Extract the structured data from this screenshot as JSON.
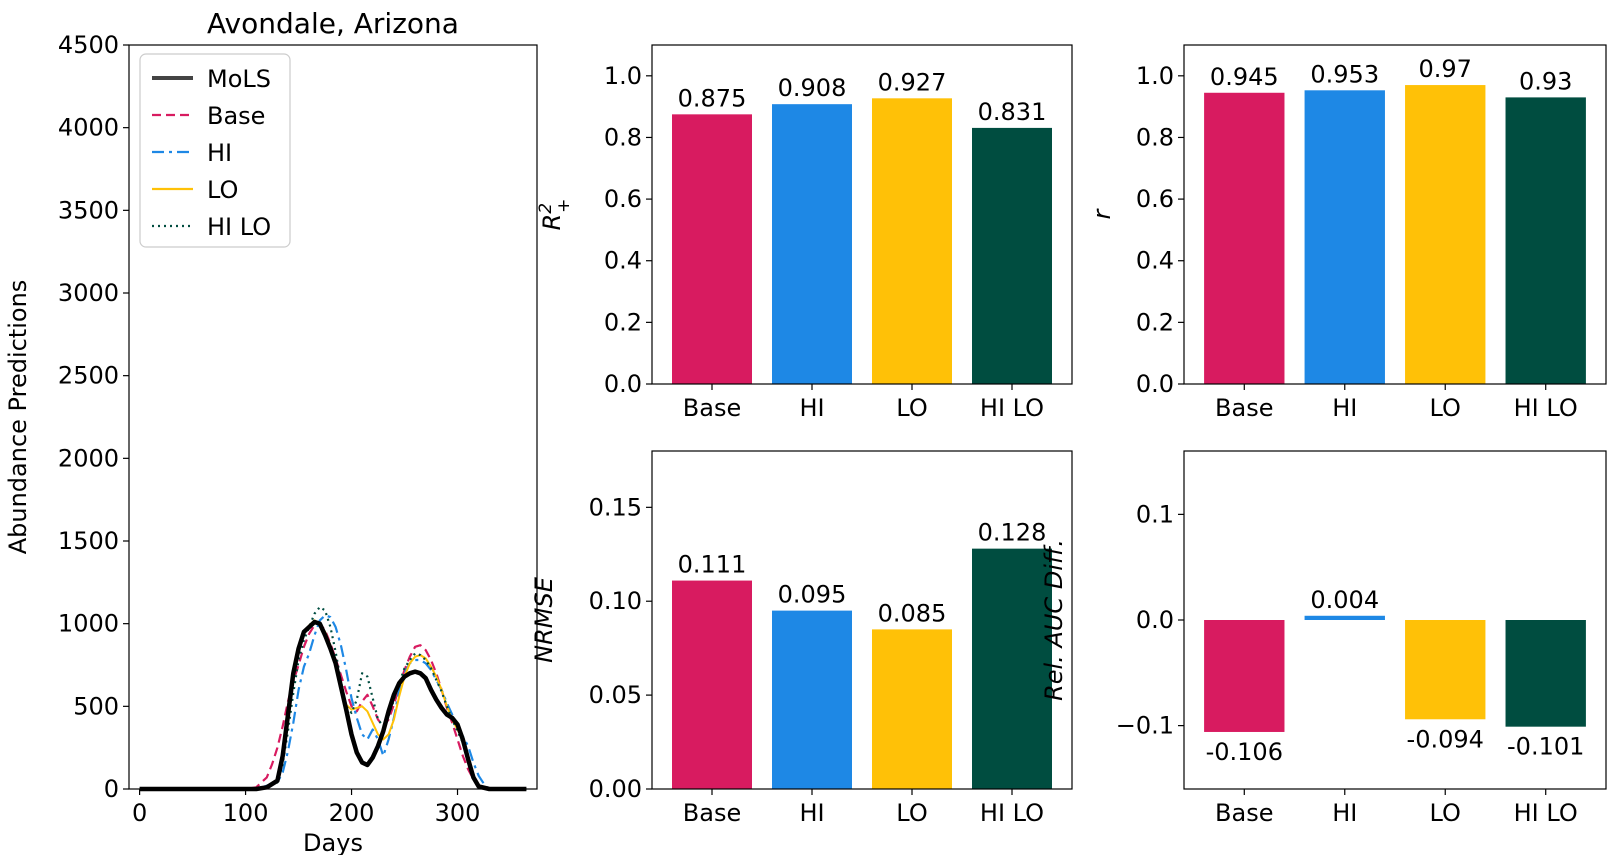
{
  "colors": {
    "MoLS": "#000000",
    "Base": "#D81B60",
    "HI": "#1E88E5",
    "LO": "#FFC107",
    "HI LO": "#004D40"
  },
  "chart_data": [
    {
      "id": "abundance",
      "type": "line",
      "title": "Avondale, Arizona",
      "xlabel": "Days",
      "ylabel": "Abundance Predictions",
      "xlim": [
        -10,
        375
      ],
      "ylim": [
        0,
        4500
      ],
      "xticks": [
        0,
        100,
        200,
        300
      ],
      "yticks": [
        0,
        500,
        1000,
        1500,
        2000,
        2500,
        3000,
        3500,
        4000,
        4500
      ],
      "legend_position": "top-left",
      "series": [
        {
          "name": "MoLS",
          "style": "solid-thick",
          "x": [
            0,
            110,
            120,
            130,
            135,
            140,
            145,
            150,
            155,
            160,
            165,
            170,
            175,
            180,
            185,
            190,
            195,
            200,
            205,
            210,
            215,
            220,
            225,
            230,
            235,
            240,
            245,
            250,
            255,
            260,
            265,
            270,
            275,
            280,
            285,
            290,
            295,
            300,
            305,
            310,
            315,
            320,
            330,
            365
          ],
          "y": [
            0,
            0,
            10,
            50,
            200,
            450,
            700,
            850,
            950,
            980,
            1010,
            1000,
            930,
            850,
            760,
            620,
            480,
            330,
            220,
            160,
            145,
            190,
            260,
            350,
            470,
            570,
            640,
            680,
            700,
            710,
            700,
            670,
            600,
            540,
            490,
            450,
            430,
            390,
            300,
            180,
            70,
            15,
            0,
            0
          ]
        },
        {
          "name": "Base",
          "style": "dashed",
          "x": [
            0,
            100,
            110,
            120,
            125,
            130,
            135,
            140,
            145,
            150,
            155,
            160,
            165,
            170,
            175,
            180,
            185,
            190,
            195,
            200,
            205,
            210,
            215,
            220,
            225,
            230,
            235,
            240,
            245,
            250,
            255,
            260,
            265,
            270,
            275,
            280,
            285,
            290,
            295,
            300,
            305,
            310,
            315,
            320,
            330,
            365
          ],
          "y": [
            0,
            0,
            10,
            70,
            150,
            250,
            380,
            530,
            650,
            750,
            860,
            940,
            990,
            1000,
            960,
            880,
            790,
            690,
            590,
            500,
            470,
            530,
            570,
            500,
            420,
            380,
            420,
            510,
            620,
            720,
            800,
            860,
            870,
            840,
            780,
            700,
            600,
            490,
            400,
            300,
            200,
            120,
            60,
            20,
            0,
            0
          ]
        },
        {
          "name": "HI",
          "style": "dashdot",
          "x": [
            0,
            110,
            120,
            130,
            135,
            140,
            145,
            150,
            155,
            160,
            165,
            170,
            175,
            180,
            185,
            190,
            195,
            200,
            205,
            210,
            215,
            220,
            225,
            230,
            235,
            240,
            245,
            250,
            255,
            260,
            265,
            270,
            275,
            280,
            285,
            290,
            295,
            300,
            305,
            310,
            315,
            320,
            325,
            330,
            365
          ],
          "y": [
            0,
            0,
            20,
            40,
            100,
            230,
            400,
            600,
            740,
            820,
            930,
            1020,
            1050,
            1040,
            980,
            870,
            720,
            550,
            430,
            330,
            300,
            360,
            300,
            200,
            300,
            430,
            600,
            700,
            760,
            780,
            780,
            760,
            720,
            660,
            600,
            520,
            450,
            380,
            320,
            260,
            160,
            80,
            30,
            0,
            0
          ]
        },
        {
          "name": "LO",
          "style": "solid-thin",
          "x": [
            0,
            110,
            120,
            130,
            135,
            140,
            145,
            150,
            155,
            160,
            165,
            170,
            175,
            180,
            185,
            190,
            195,
            200,
            205,
            210,
            215,
            220,
            225,
            230,
            235,
            240,
            245,
            250,
            255,
            260,
            265,
            270,
            275,
            280,
            285,
            290,
            295,
            300,
            305,
            310,
            315,
            320,
            330,
            365
          ],
          "y": [
            0,
            0,
            10,
            60,
            200,
            450,
            700,
            870,
            950,
            990,
            1020,
            1000,
            950,
            870,
            760,
            620,
            510,
            480,
            490,
            500,
            470,
            400,
            330,
            300,
            330,
            420,
            560,
            680,
            760,
            800,
            810,
            790,
            740,
            680,
            600,
            500,
            420,
            360,
            300,
            200,
            80,
            20,
            0,
            0
          ]
        },
        {
          "name": "HI LO",
          "style": "dotted",
          "x": [
            0,
            110,
            120,
            130,
            135,
            140,
            145,
            150,
            155,
            160,
            165,
            170,
            175,
            180,
            185,
            190,
            195,
            200,
            205,
            210,
            215,
            220,
            225,
            230,
            235,
            240,
            245,
            250,
            255,
            260,
            265,
            270,
            275,
            280,
            285,
            290,
            295,
            300,
            305,
            310,
            315,
            320,
            330,
            365
          ],
          "y": [
            0,
            0,
            10,
            40,
            150,
            350,
            580,
            780,
            900,
            980,
            1060,
            1100,
            1080,
            980,
            830,
            650,
            500,
            460,
            540,
            700,
            680,
            550,
            420,
            380,
            440,
            540,
            640,
            730,
            780,
            820,
            810,
            780,
            730,
            660,
            590,
            500,
            420,
            350,
            280,
            190,
            80,
            20,
            0,
            0
          ]
        }
      ]
    },
    {
      "id": "r2",
      "type": "bar",
      "ylabel": "R",
      "ylabel_sup": "2",
      "ylabel_sub": "+",
      "categories": [
        "Base",
        "HI",
        "LO",
        "HI LO"
      ],
      "values": [
        0.875,
        0.908,
        0.927,
        0.831
      ],
      "value_labels": [
        "0.875",
        "0.908",
        "0.927",
        "0.831"
      ],
      "ylim": [
        0,
        1.1
      ],
      "yticks": [
        0.0,
        0.2,
        0.4,
        0.6,
        0.8,
        1.0
      ],
      "ytick_labels": [
        "0.0",
        "0.2",
        "0.4",
        "0.6",
        "0.8",
        "1.0"
      ]
    },
    {
      "id": "r",
      "type": "bar",
      "ylabel": "r",
      "categories": [
        "Base",
        "HI",
        "LO",
        "HI LO"
      ],
      "values": [
        0.945,
        0.953,
        0.97,
        0.93
      ],
      "value_labels": [
        "0.945",
        "0.953",
        "0.97",
        "0.93"
      ],
      "ylim": [
        0,
        1.1
      ],
      "yticks": [
        0.0,
        0.2,
        0.4,
        0.6,
        0.8,
        1.0
      ],
      "ytick_labels": [
        "0.0",
        "0.2",
        "0.4",
        "0.6",
        "0.8",
        "1.0"
      ]
    },
    {
      "id": "nrmse",
      "type": "bar",
      "ylabel": "NRMSE",
      "categories": [
        "Base",
        "HI",
        "LO",
        "HI LO"
      ],
      "values": [
        0.111,
        0.095,
        0.085,
        0.128
      ],
      "value_labels": [
        "0.111",
        "0.095",
        "0.085",
        "0.128"
      ],
      "ylim": [
        0,
        0.18
      ],
      "yticks": [
        0.0,
        0.05,
        0.1,
        0.15
      ],
      "ytick_labels": [
        "0.00",
        "0.05",
        "0.10",
        "0.15"
      ]
    },
    {
      "id": "auc",
      "type": "bar",
      "ylabel": "Rel. AUC Diff.",
      "categories": [
        "Base",
        "HI",
        "LO",
        "HI LO"
      ],
      "values": [
        -0.106,
        0.004,
        -0.094,
        -0.101
      ],
      "value_labels": [
        "-0.106",
        "0.004",
        "-0.094",
        "-0.101"
      ],
      "ylim": [
        -0.16,
        0.16
      ],
      "yticks": [
        -0.1,
        0.0,
        0.1
      ],
      "ytick_labels": [
        "−0.1",
        "0.0",
        "0.1"
      ]
    }
  ]
}
